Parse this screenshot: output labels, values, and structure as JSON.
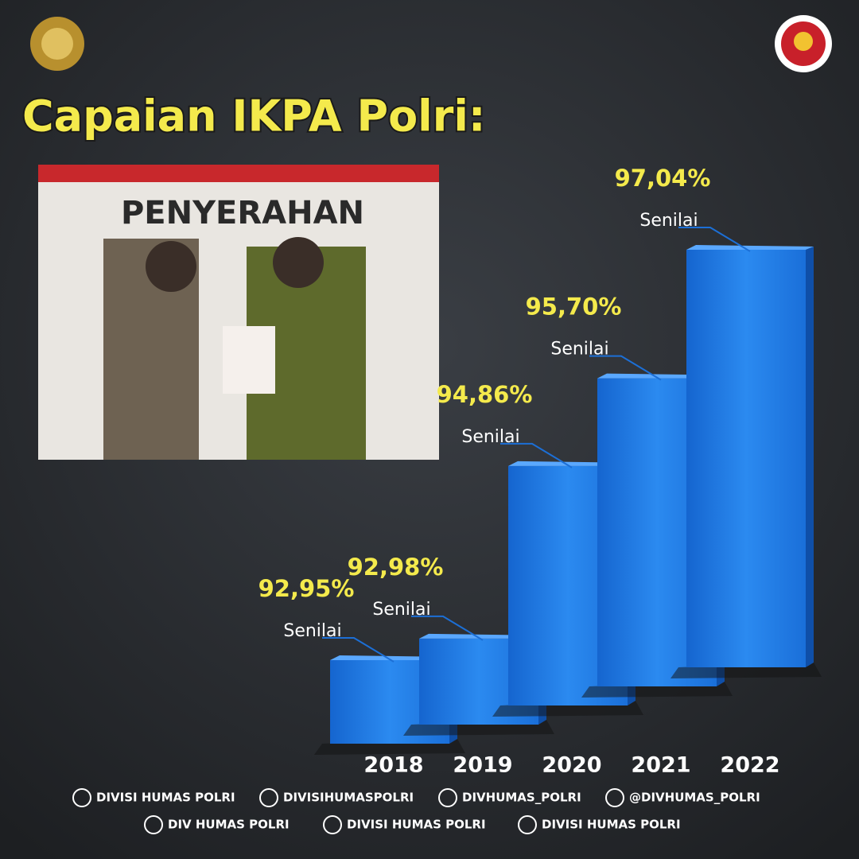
{
  "header": {
    "title": "Capaian IKPA Polri:"
  },
  "photo": {
    "caption": "PENYERAHAN"
  },
  "chart_data": {
    "type": "bar",
    "categories": [
      "2018",
      "2019",
      "2020",
      "2021",
      "2022"
    ],
    "values": [
      92.95,
      92.98,
      94.86,
      95.7,
      97.04
    ],
    "value_labels": [
      "92,95%",
      "92,98%",
      "94,86%",
      "95,70%",
      "97,04%"
    ],
    "annotation": "Senilai",
    "color": "#1f7fe6"
  },
  "footer": {
    "row1": [
      "DIVISI HUMAS POLRI",
      "DIVISIHUMASPOLRI",
      "DIVHUMAS_POLRI",
      "@DIVHUMAS_POLRI"
    ],
    "row2": [
      "DIV HUMAS POLRI",
      "DIVISI HUMAS POLRI",
      "DIVISI HUMAS POLRI"
    ]
  }
}
